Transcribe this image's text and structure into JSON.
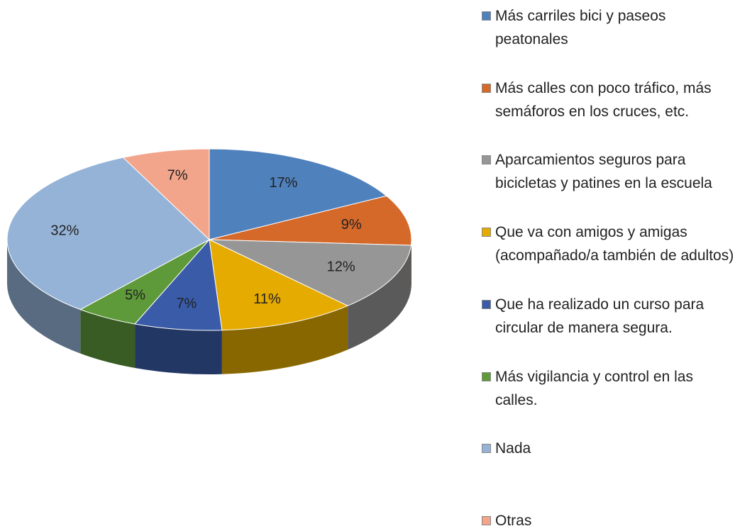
{
  "chart_data": {
    "type": "pie",
    "categories": [
      "Más carriles bici y paseos peatonales",
      "Más calles con poco tráfico, más semáforos en los cruces, etc.",
      "Aparcamientos seguros para bicicletas y patines en la escuela",
      "Que va con amigos y amigas (acompañado/a también de adultos)",
      "Que ha realizado un curso para circular de manera segura.",
      "Más vigilancia y control en las calles.",
      "Nada",
      "Otras"
    ],
    "values": [
      17,
      9,
      12,
      11,
      7,
      5,
      32,
      7
    ],
    "value_labels": [
      "17%",
      "9%",
      "12%",
      "11%",
      "7%",
      "5%",
      "32%",
      "7%"
    ],
    "colors": [
      "#4f81bd",
      "#d4692a",
      "#969696",
      "#e5ab00",
      "#3a5ba8",
      "#5e9a3a",
      "#95b3d7",
      "#f2a58a"
    ],
    "legend": "right"
  }
}
